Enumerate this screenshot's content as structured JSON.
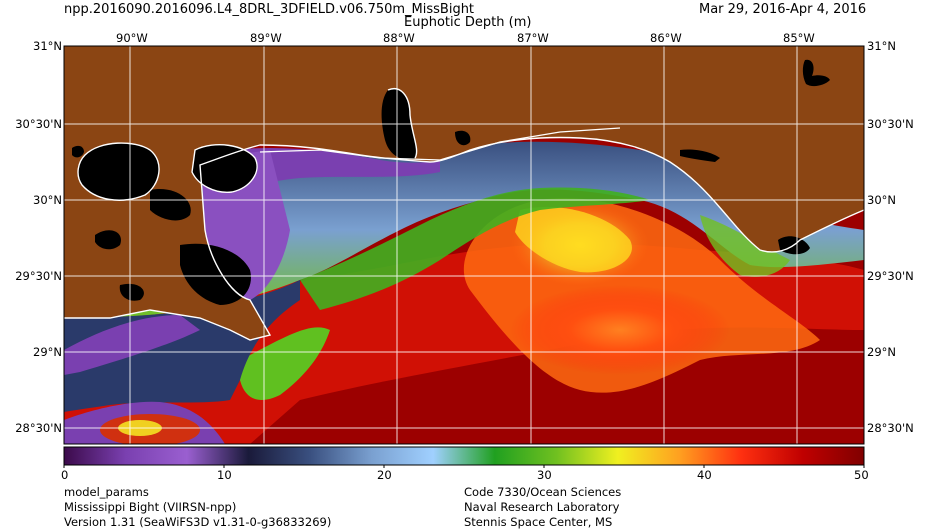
{
  "header": {
    "product": "npp.2016090.2016096.L4_8DRL_3DFIELD.v06.750m_MissBight",
    "variable": "Euphotic Depth (m)",
    "date_range": "Mar 29, 2016-Apr  4, 2016"
  },
  "map": {
    "lon_labels": [
      "90°W",
      "89°W",
      "88°W",
      "87°W",
      "86°W",
      "85°W"
    ],
    "lat_labels": [
      "31°N",
      "30°30'N",
      "30°N",
      "29°30'N",
      "29°N",
      "28°30'N"
    ],
    "colors": {
      "land": "#8b4513",
      "inland_water": "#000000",
      "coastline": "#ffffff",
      "grid": "#ffffff"
    }
  },
  "colorbar": {
    "ticks": [
      "0",
      "10",
      "20",
      "30",
      "40",
      "50"
    ],
    "min": 0,
    "max": 50,
    "stops": [
      "#3b0a4a",
      "#7a40b0",
      "#9a5fd0",
      "#1a1a3a",
      "#3a5080",
      "#7aa0d0",
      "#a0d0ff",
      "#20a020",
      "#70c020",
      "#f0f020",
      "#ffa020",
      "#ff3010",
      "#c00000",
      "#800000"
    ]
  },
  "footer": {
    "left": [
      "model_params",
      "Mississippi Bight (VIIRSN-npp)",
      "Version 1.31 (SeaWiFS3D v1.31-0-g36833269)"
    ],
    "right": [
      "Code 7330/Ocean Sciences",
      "Naval Research Laboratory",
      "Stennis Space Center, MS"
    ]
  }
}
